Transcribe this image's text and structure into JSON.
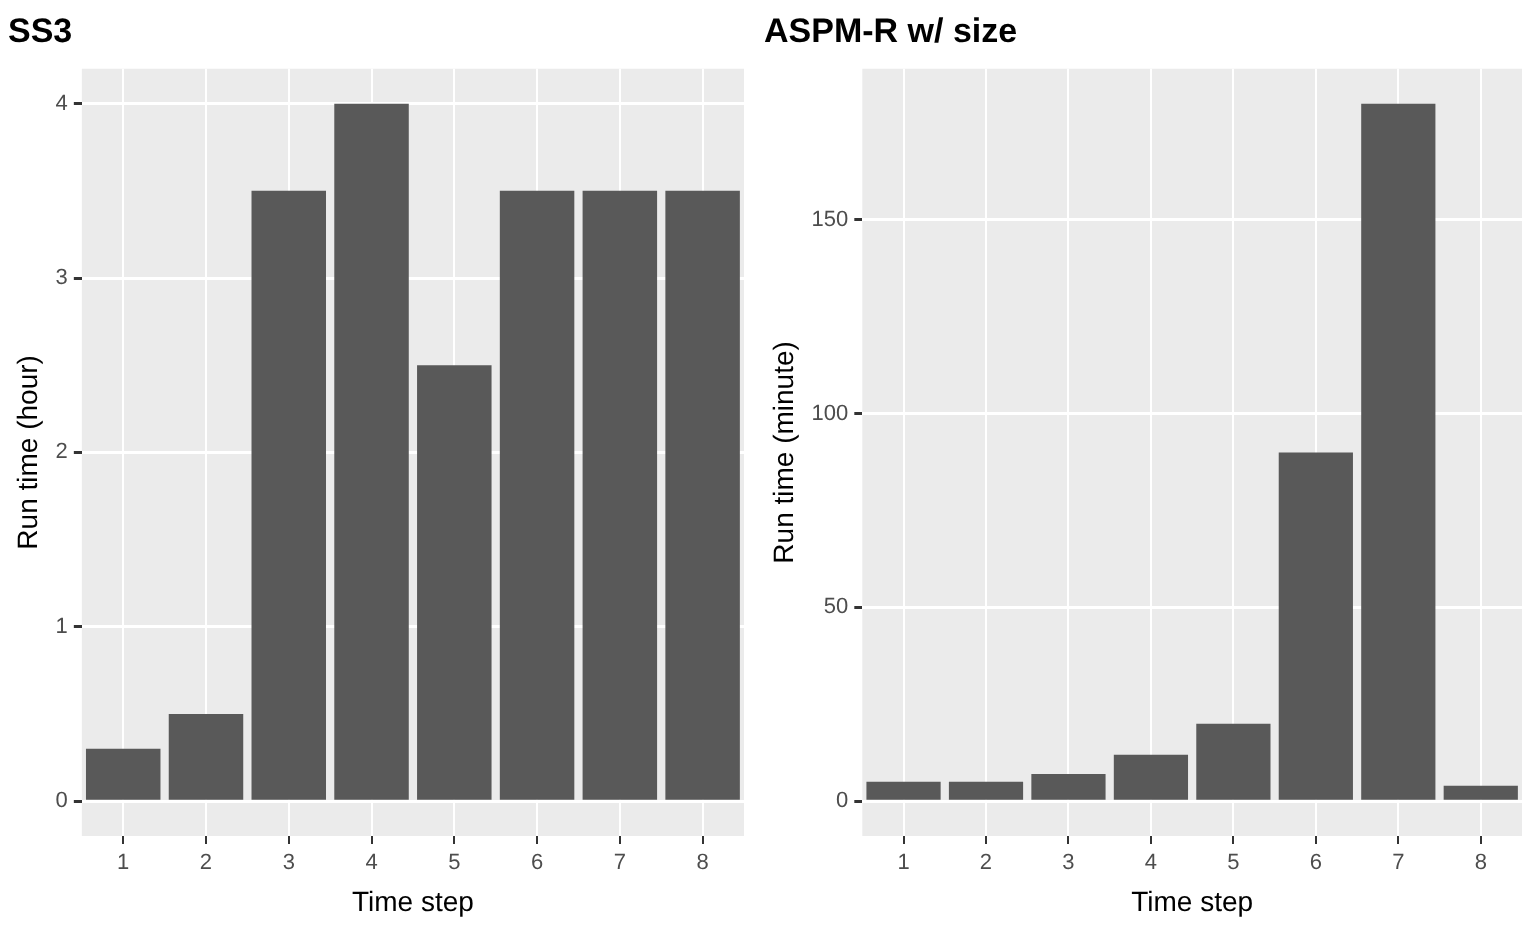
{
  "chart_data": [
    {
      "type": "bar",
      "title": "SS3",
      "xlabel": "Time step",
      "ylabel": "Run time (hour)",
      "categories": [
        "1",
        "2",
        "3",
        "4",
        "5",
        "6",
        "7",
        "8"
      ],
      "values": [
        0.3,
        0.5,
        3.5,
        4,
        2.5,
        3.5,
        3.5,
        3.5
      ],
      "color": "#595959",
      "ylim": [
        -0.2,
        4.2
      ],
      "yticks": [
        0,
        1,
        2,
        3,
        4
      ],
      "grid": true
    },
    {
      "type": "bar",
      "title": "ASPM-R w/ size",
      "xlabel": "Time step",
      "ylabel": "Run time (minute)",
      "categories": [
        "1",
        "2",
        "3",
        "4",
        "5",
        "6",
        "7",
        "8"
      ],
      "values": [
        5,
        5,
        7,
        12,
        20,
        90,
        180,
        4
      ],
      "color": "#595959",
      "ylim": [
        -9,
        189
      ],
      "yticks": [
        0,
        50,
        100,
        150
      ],
      "grid": true
    }
  ]
}
